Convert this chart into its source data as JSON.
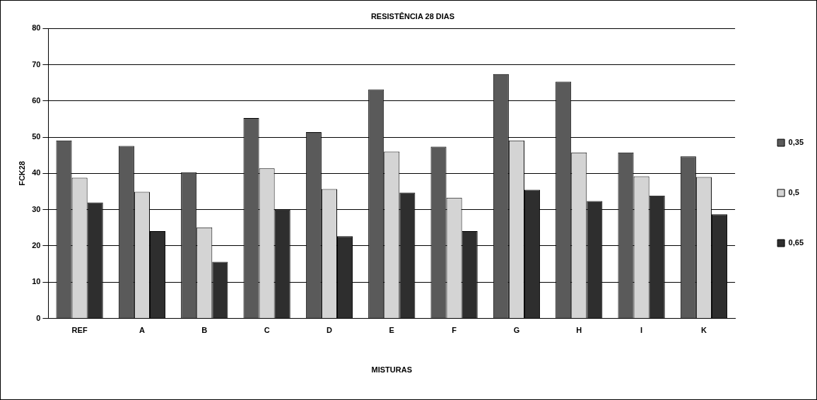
{
  "chart_data": {
    "type": "bar",
    "title": "RESISTÊNCIA 28 DIAS",
    "xlabel": "MISTURAS",
    "ylabel": "FCK28",
    "categories": [
      "REF",
      "A",
      "B",
      "C",
      "D",
      "E",
      "F",
      "G",
      "H",
      "I",
      "K"
    ],
    "series": [
      {
        "name": "0,35",
        "color": "#5a5a5a",
        "values": [
          49.1,
          47.6,
          40.3,
          55.3,
          51.4,
          63.2,
          47.4,
          67.4,
          65.3,
          45.8,
          44.7
        ]
      },
      {
        "name": "0,5",
        "color": "#d4d4d4",
        "values": [
          38.8,
          34.9,
          25.1,
          41.4,
          35.7,
          46.0,
          33.3,
          49.1,
          45.8,
          39.2,
          39.0
        ]
      },
      {
        "name": "0,65",
        "color": "#2e2e2e",
        "values": [
          32.0,
          24.1,
          15.6,
          30.0,
          22.7,
          34.7,
          24.1,
          35.5,
          32.4,
          33.9,
          28.7
        ]
      }
    ],
    "ylim": [
      0,
      80
    ],
    "yticks": [
      0,
      10,
      20,
      30,
      40,
      50,
      60,
      70,
      80
    ],
    "grid": "y",
    "legend": "right"
  }
}
